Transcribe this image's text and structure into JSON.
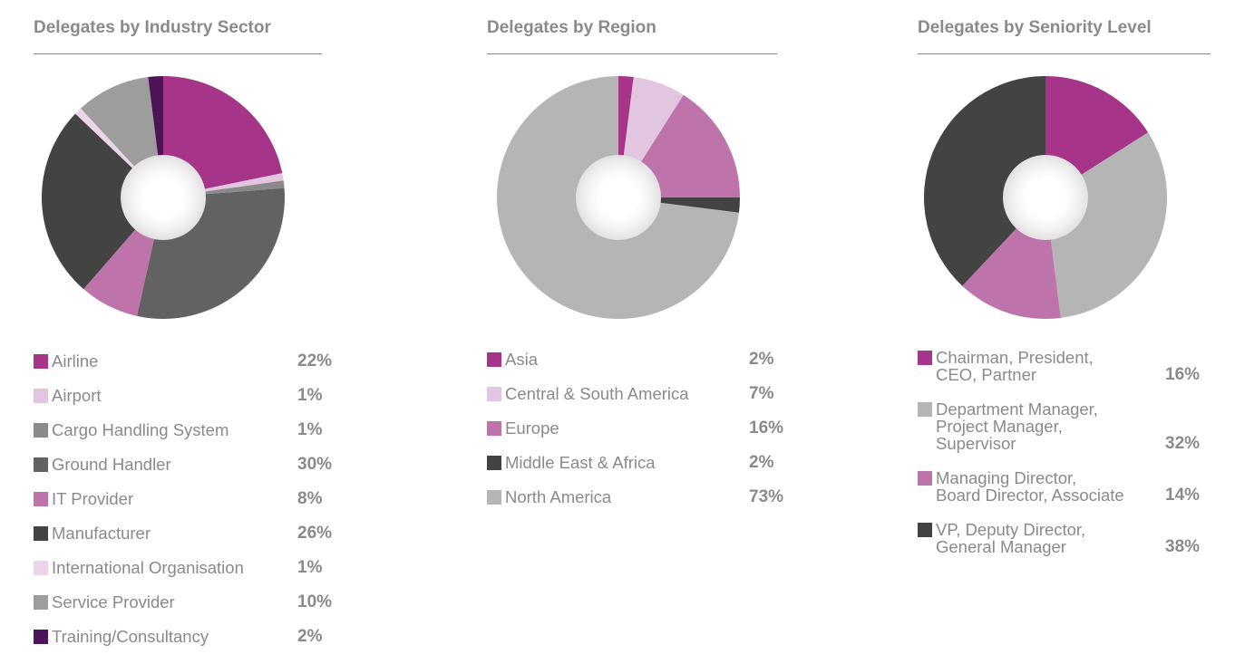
{
  "chart_data": [
    {
      "type": "pie",
      "title": "Delegates by Industry Sector",
      "categories": [
        "Airline",
        "Airport",
        "Cargo Handling System",
        "Ground Handler",
        "IT Provider",
        "Manufacturer",
        "International Organisation",
        "Service Provider",
        "Training/Consultancy"
      ],
      "values": [
        22,
        1,
        1,
        30,
        8,
        26,
        1,
        10,
        2
      ],
      "labels": [
        "22%",
        "1%",
        "1%",
        "30%",
        "8%",
        "26%",
        "1%",
        "10%",
        "2%"
      ],
      "colors": [
        "#a6358a",
        "#e2c6df",
        "#8a8a8a",
        "#626262",
        "#be74ab",
        "#434341",
        "#ead6e8",
        "#9d9d9c",
        "#4e1458"
      ],
      "legend": "bottom"
    },
    {
      "type": "pie",
      "title": "Delegates by Region",
      "categories": [
        "Asia",
        "Central & South America",
        "Europe",
        "Middle East & Africa",
        "North America"
      ],
      "values": [
        2,
        7,
        16,
        2,
        73
      ],
      "labels": [
        "2%",
        "7%",
        "16%",
        "2%",
        "73%"
      ],
      "colors": [
        "#a6358a",
        "#e2c6df",
        "#be74ab",
        "#434341",
        "#b5b5b5"
      ],
      "legend": "bottom"
    },
    {
      "type": "pie",
      "title": "Delegates by Seniority Level",
      "categories": [
        "Chairman, President,\nCEO, Partner",
        "Department Manager,\nProject Manager,\nSupervisor",
        "Managing Director,\nBoard Director, Associate",
        "VP, Deputy Director,\nGeneral Manager"
      ],
      "values": [
        16,
        32,
        14,
        38
      ],
      "labels": [
        "16%",
        "32%",
        "14%",
        "38%"
      ],
      "colors": [
        "#a6358a",
        "#b5b5b5",
        "#be74ab",
        "#434341"
      ],
      "legend": "bottom"
    }
  ]
}
